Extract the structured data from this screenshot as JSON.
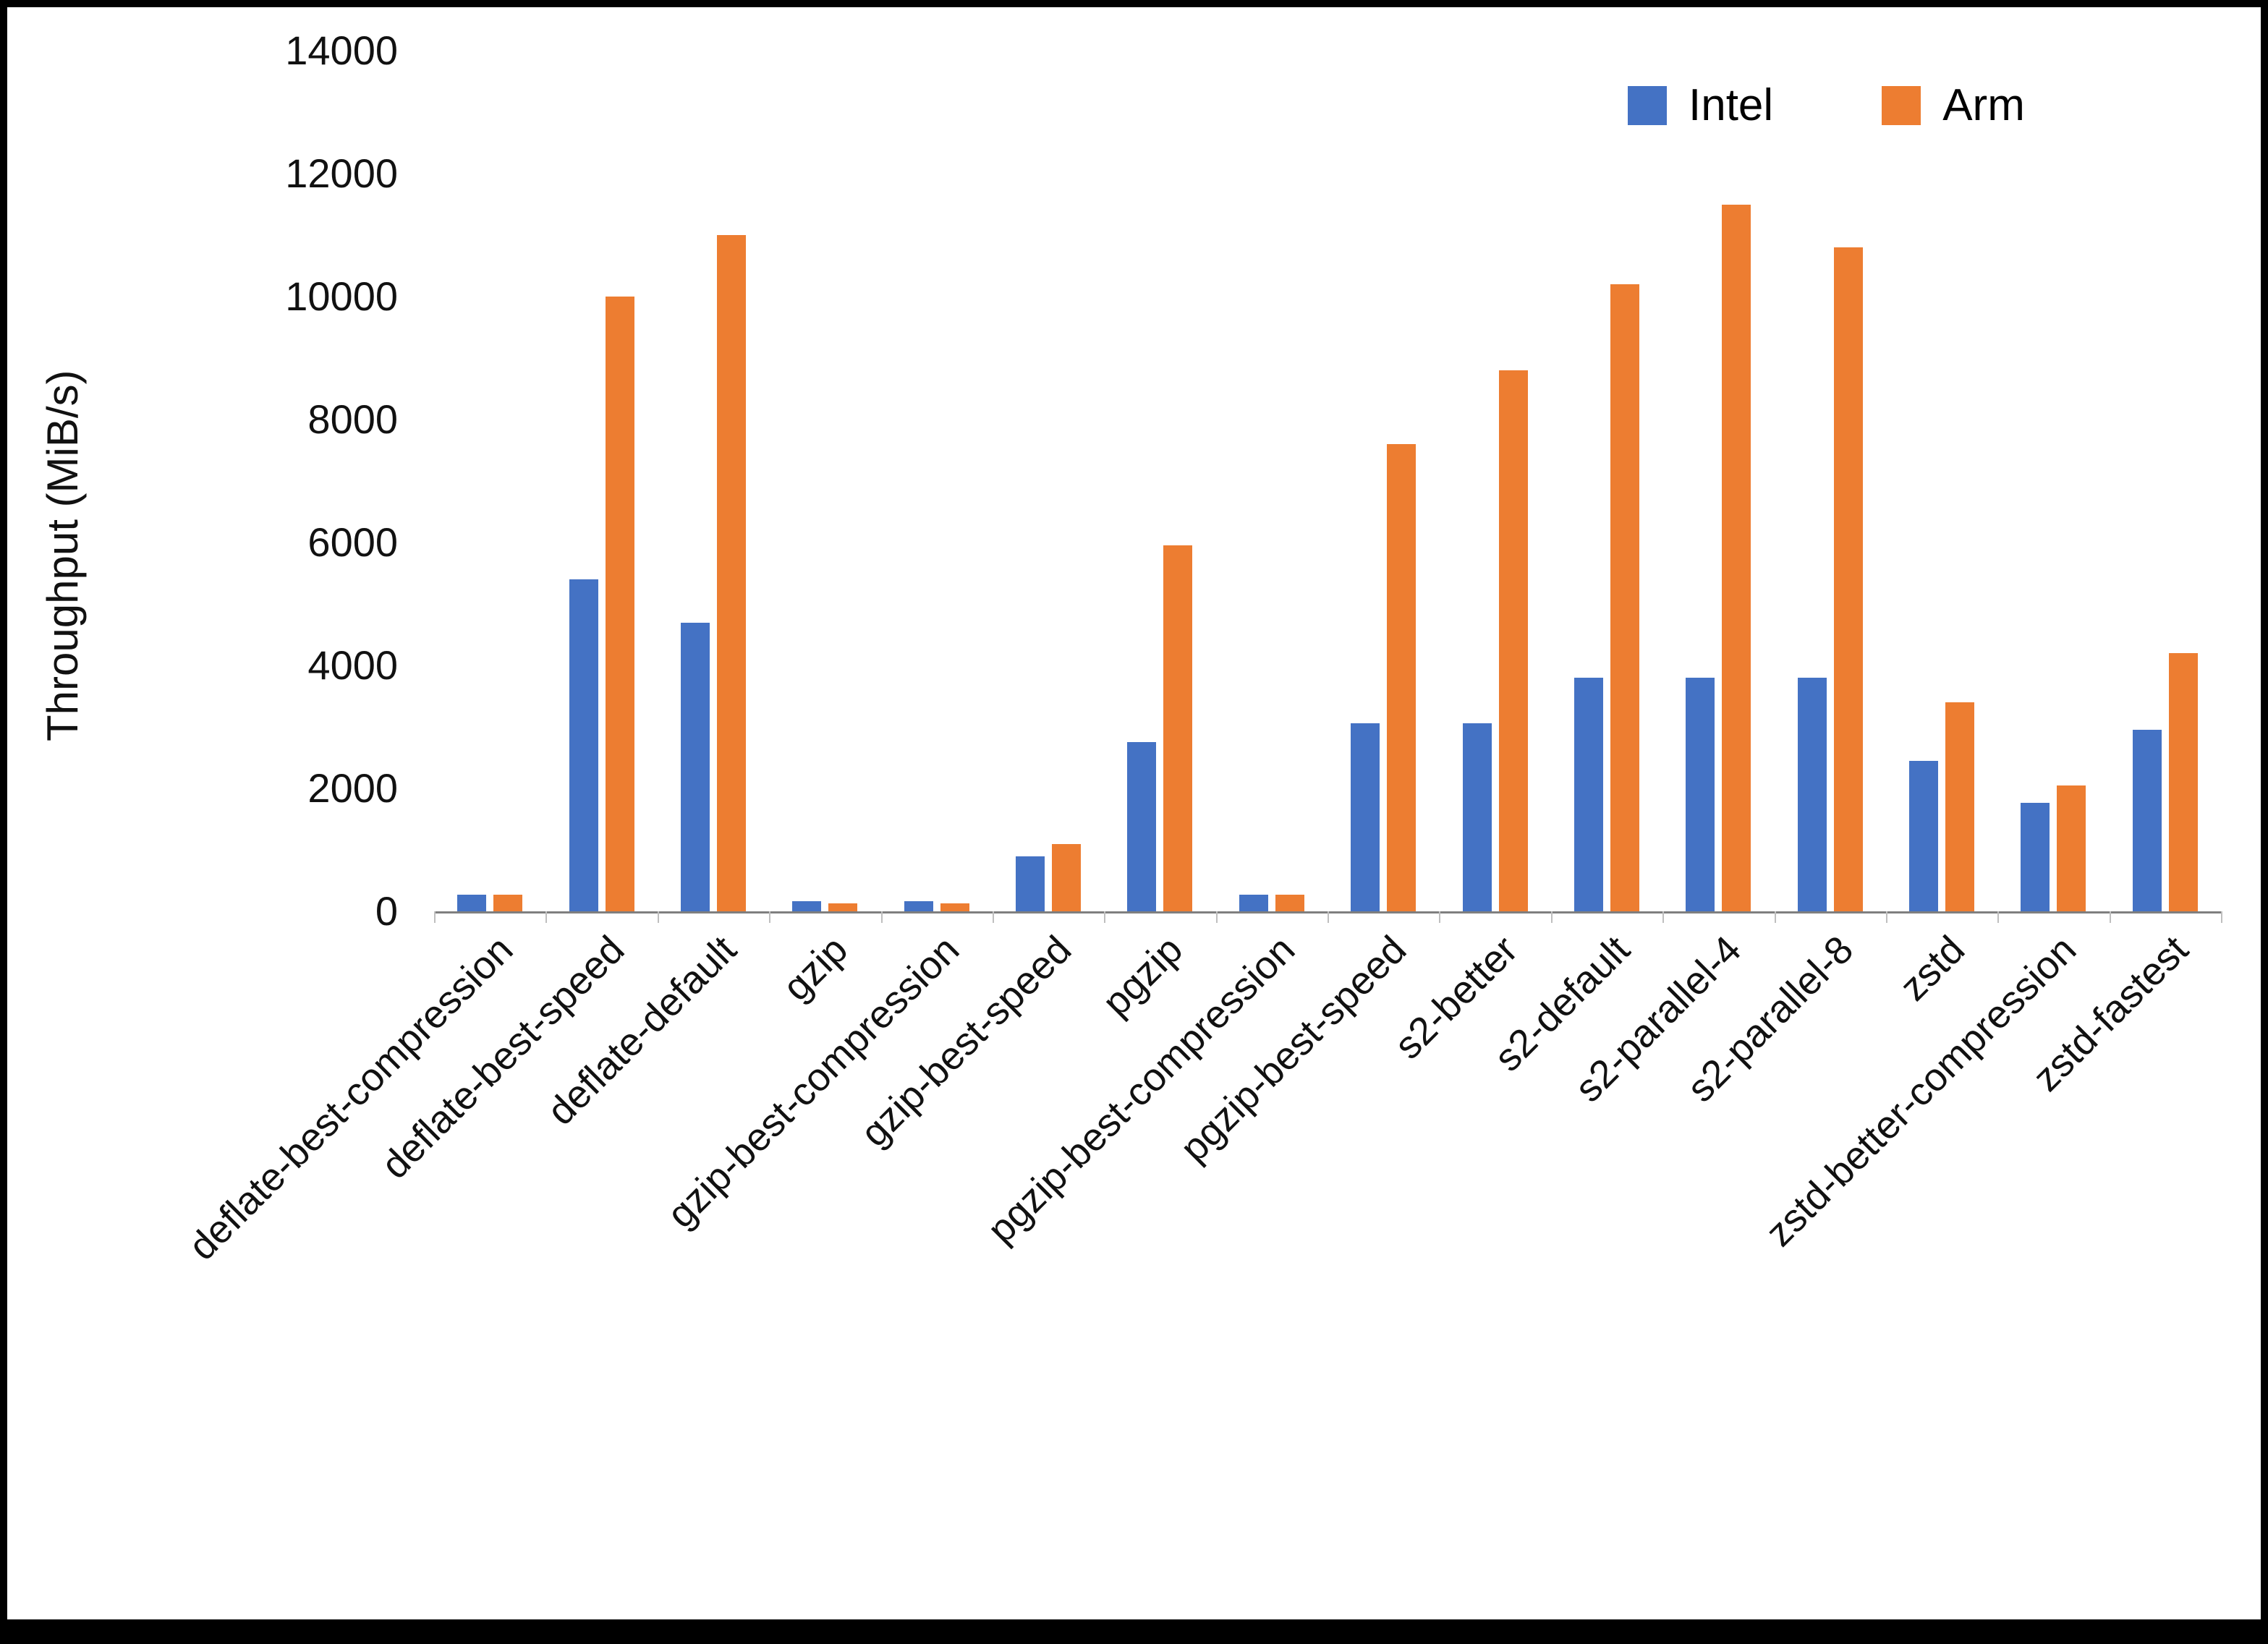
{
  "chart_data": {
    "type": "bar",
    "title": "",
    "xlabel": "",
    "ylabel": "Throughput (MiB/s)",
    "ylim": [
      0,
      14000
    ],
    "ytick_step": 2000,
    "grid": false,
    "legend_position": "top-right",
    "categories": [
      "deflate-best-compression",
      "deflate-best-speed",
      "deflate-default",
      "gzip",
      "gzip-best-compression",
      "gzip-best-speed",
      "pgzip",
      "pgzip-best-compression",
      "pgzip-best-speed",
      "s2-better",
      "s2-default",
      "s2-parallel-4",
      "s2-parallel-8",
      "zstd",
      "zstd-better-compression",
      "zstd-fastest"
    ],
    "series": [
      {
        "name": "Intel",
        "color": "#4472C4",
        "values": [
          270,
          5400,
          4700,
          160,
          160,
          890,
          2750,
          270,
          3060,
          3060,
          3800,
          3800,
          3800,
          2450,
          1760,
          2950
        ]
      },
      {
        "name": "Arm",
        "color": "#ED7D31",
        "values": [
          270,
          10000,
          11000,
          130,
          130,
          1100,
          5950,
          270,
          7600,
          8800,
          10200,
          11500,
          10800,
          3400,
          2050,
          4200
        ]
      }
    ]
  }
}
